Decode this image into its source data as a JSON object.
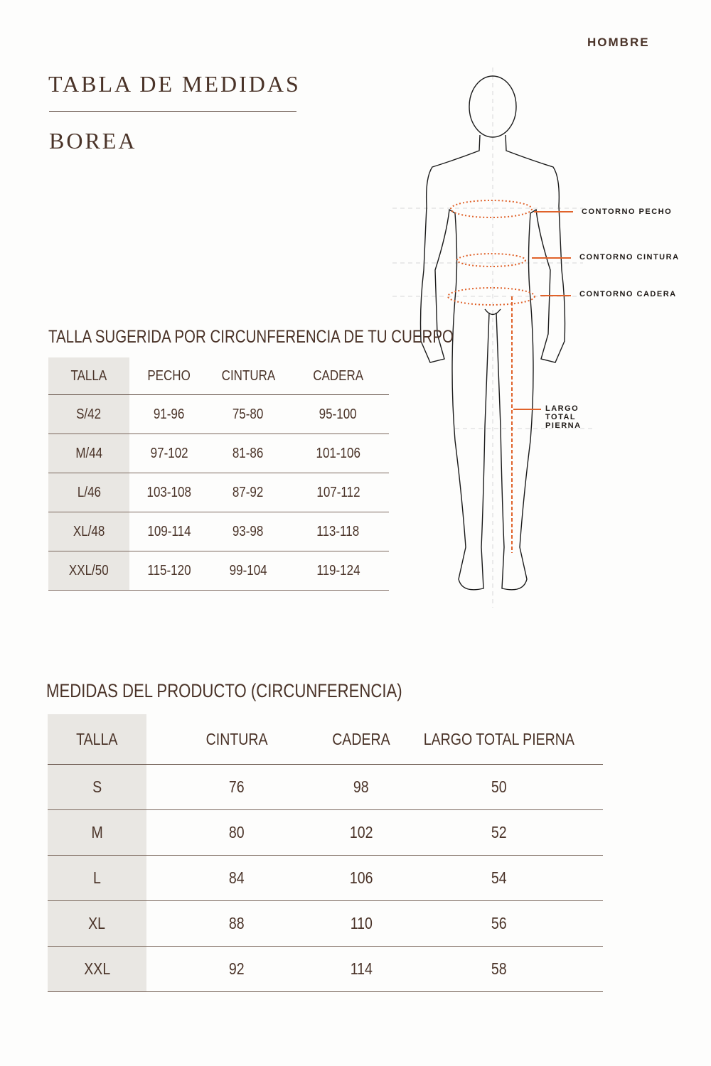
{
  "header": {
    "gender": "HOMBRE",
    "title": "TABLA DE MEDIDAS",
    "product": "BOREA"
  },
  "colors": {
    "text": "#4a3328",
    "accent": "#e0622a",
    "column_bg": "#e9e7e3"
  },
  "figure": {
    "labels": {
      "chest": "CONTORNO PECHO",
      "waist": "CONTORNO CINTURA",
      "hip": "CONTORNO CADERA",
      "leg": "LARGO TOTAL PIERNA"
    }
  },
  "body_table": {
    "title": "TALLA SUGERIDA POR CIRCUNFERENCIA DE TU CUERPO",
    "headers": [
      "TALLA",
      "PECHO",
      "CINTURA",
      "CADERA"
    ],
    "rows": [
      [
        "S/42",
        "91-96",
        "75-80",
        "95-100"
      ],
      [
        "M/44",
        "97-102",
        "81-86",
        "101-106"
      ],
      [
        "L/46",
        "103-108",
        "87-92",
        "107-112"
      ],
      [
        "XL/48",
        "109-114",
        "93-98",
        "113-118"
      ],
      [
        "XXL/50",
        "115-120",
        "99-104",
        "119-124"
      ]
    ]
  },
  "product_table": {
    "title": "MEDIDAS DEL PRODUCTO (CIRCUNFERENCIA)",
    "headers": [
      "TALLA",
      "CINTURA",
      "CADERA",
      "LARGO TOTAL PIERNA"
    ],
    "rows": [
      [
        "S",
        "76",
        "98",
        "50"
      ],
      [
        "M",
        "80",
        "102",
        "52"
      ],
      [
        "L",
        "84",
        "106",
        "54"
      ],
      [
        "XL",
        "88",
        "110",
        "56"
      ],
      [
        "XXL",
        "92",
        "114",
        "58"
      ]
    ]
  }
}
